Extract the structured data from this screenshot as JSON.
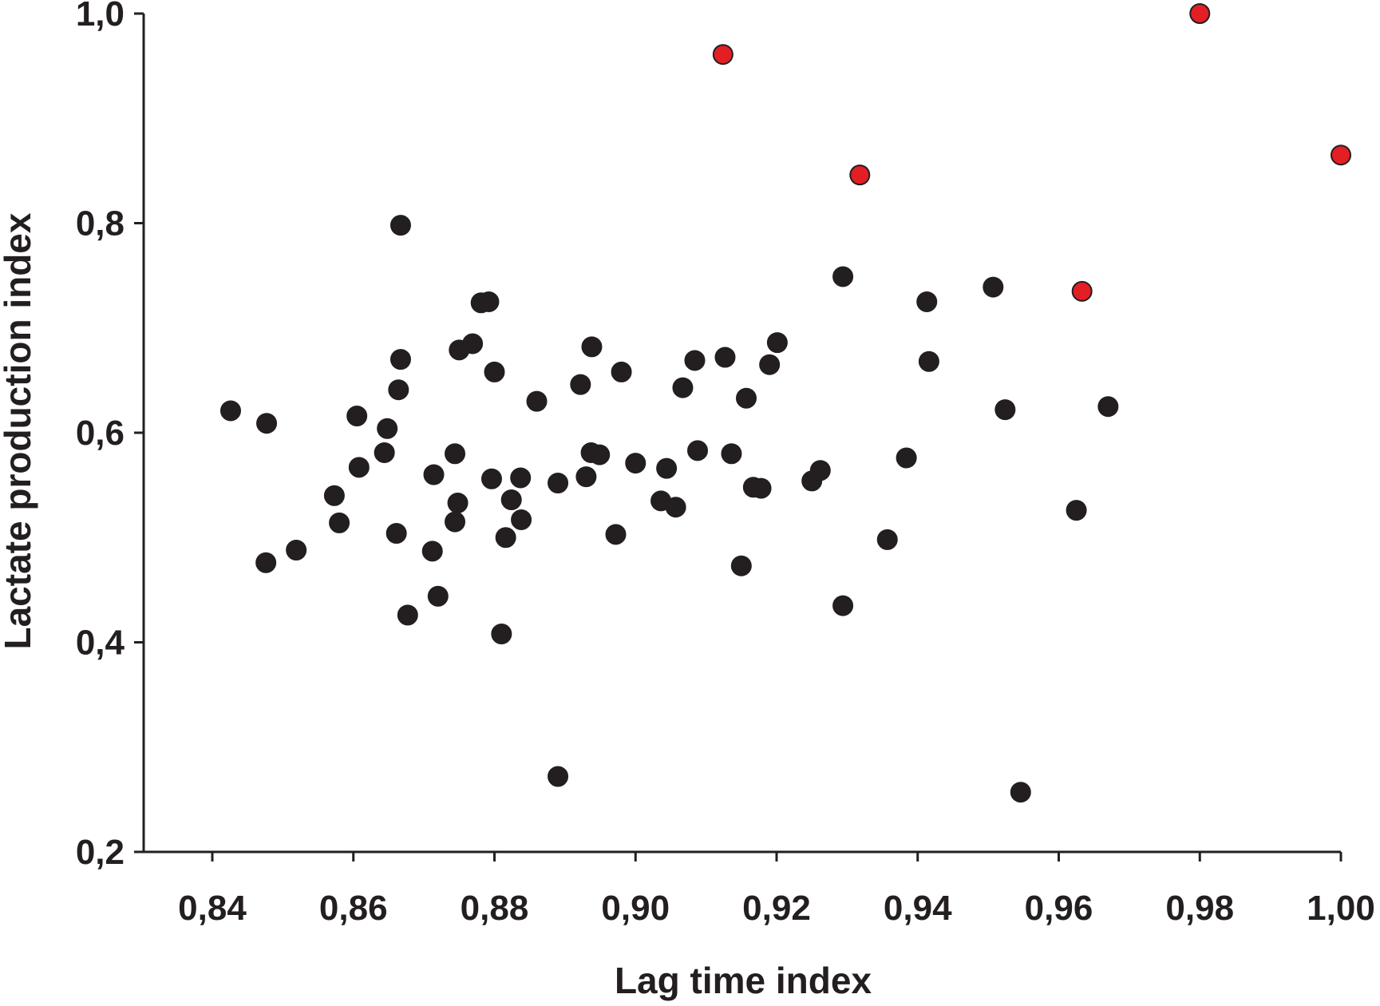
{
  "chart_data": {
    "type": "scatter",
    "title": "",
    "xlabel": "Lag time index",
    "ylabel": "Lactate production index",
    "xlim": [
      0.83,
      1.0
    ],
    "ylim": [
      0.2,
      1.0
    ],
    "grid": false,
    "xticks": [
      {
        "value": 0.84,
        "label": "0,84"
      },
      {
        "value": 0.86,
        "label": "0,86"
      },
      {
        "value": 0.88,
        "label": "0,88"
      },
      {
        "value": 0.9,
        "label": "0,90"
      },
      {
        "value": 0.92,
        "label": "0,92"
      },
      {
        "value": 0.94,
        "label": "0,94"
      },
      {
        "value": 0.96,
        "label": "0,96"
      },
      {
        "value": 0.98,
        "label": "0,98"
      },
      {
        "value": 1.0,
        "label": "1,00"
      }
    ],
    "yticks": [
      {
        "value": 0.2,
        "label": "0,2"
      },
      {
        "value": 0.4,
        "label": "0,4"
      },
      {
        "value": 0.6,
        "label": "0,6"
      },
      {
        "value": 0.8,
        "label": "0,8"
      },
      {
        "value": 1.0,
        "label": "1,0"
      }
    ],
    "series": [
      {
        "color": "#231f20",
        "points": [
          [
            0.8426,
            0.621
          ],
          [
            0.8477,
            0.609
          ],
          [
            0.8476,
            0.476
          ],
          [
            0.8519,
            0.488
          ],
          [
            0.8573,
            0.54
          ],
          [
            0.858,
            0.514
          ],
          [
            0.8605,
            0.616
          ],
          [
            0.8608,
            0.567
          ],
          [
            0.8644,
            0.581
          ],
          [
            0.8648,
            0.604
          ],
          [
            0.8661,
            0.504
          ],
          [
            0.8664,
            0.641
          ],
          [
            0.8667,
            0.67
          ],
          [
            0.8667,
            0.798
          ],
          [
            0.8677,
            0.426
          ],
          [
            0.8714,
            0.56
          ],
          [
            0.8712,
            0.487
          ],
          [
            0.872,
            0.444
          ],
          [
            0.8744,
            0.58
          ],
          [
            0.8744,
            0.515
          ],
          [
            0.8748,
            0.533
          ],
          [
            0.875,
            0.679
          ],
          [
            0.8769,
            0.685
          ],
          [
            0.8781,
            0.724
          ],
          [
            0.8792,
            0.725
          ],
          [
            0.88,
            0.658
          ],
          [
            0.8796,
            0.556
          ],
          [
            0.881,
            0.408
          ],
          [
            0.8816,
            0.5
          ],
          [
            0.8824,
            0.536
          ],
          [
            0.8837,
            0.557
          ],
          [
            0.8838,
            0.517
          ],
          [
            0.886,
            0.63
          ],
          [
            0.889,
            0.552
          ],
          [
            0.889,
            0.272
          ],
          [
            0.8922,
            0.646
          ],
          [
            0.893,
            0.558
          ],
          [
            0.8937,
            0.581
          ],
          [
            0.8938,
            0.682
          ],
          [
            0.8949,
            0.579
          ],
          [
            0.8972,
            0.503
          ],
          [
            0.898,
            0.658
          ],
          [
            0.9,
            0.571
          ],
          [
            0.9036,
            0.535
          ],
          [
            0.9044,
            0.566
          ],
          [
            0.9057,
            0.529
          ],
          [
            0.9067,
            0.643
          ],
          [
            0.9084,
            0.669
          ],
          [
            0.9088,
            0.583
          ],
          [
            0.9127,
            0.672
          ],
          [
            0.9136,
            0.58
          ],
          [
            0.915,
            0.473
          ],
          [
            0.9157,
            0.633
          ],
          [
            0.9167,
            0.548
          ],
          [
            0.9178,
            0.547
          ],
          [
            0.919,
            0.665
          ],
          [
            0.9201,
            0.686
          ],
          [
            0.925,
            0.554
          ],
          [
            0.9262,
            0.564
          ],
          [
            0.9294,
            0.749
          ],
          [
            0.9294,
            0.435
          ],
          [
            0.9357,
            0.498
          ],
          [
            0.9384,
            0.576
          ],
          [
            0.9413,
            0.725
          ],
          [
            0.9416,
            0.668
          ],
          [
            0.9507,
            0.739
          ],
          [
            0.9524,
            0.622
          ],
          [
            0.9546,
            0.257
          ],
          [
            0.9625,
            0.526
          ],
          [
            0.967,
            0.625
          ]
        ]
      },
      {
        "color": "#e31e24",
        "points": [
          [
            0.9124,
            0.961
          ],
          [
            0.9318,
            0.846
          ],
          [
            0.9633,
            0.735
          ],
          [
            0.98,
            1.0
          ],
          [
            1.0,
            0.865
          ]
        ]
      }
    ]
  }
}
